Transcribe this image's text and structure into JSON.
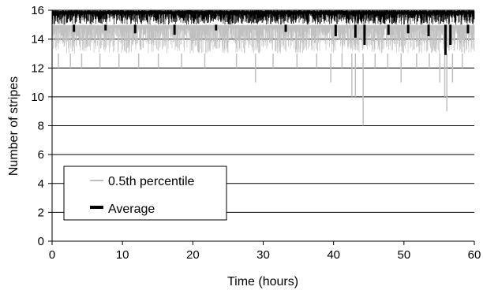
{
  "chart_data": {
    "type": "line",
    "xlabel": "Time (hours)",
    "ylabel": "Number of stripes",
    "xlim": [
      0,
      60
    ],
    "ylim": [
      0,
      16
    ],
    "x_ticks": [
      "0",
      "10",
      "20",
      "30",
      "40",
      "50",
      "60"
    ],
    "y_ticks": [
      "0",
      "2",
      "4",
      "6",
      "8",
      "10",
      "12",
      "14",
      "16"
    ],
    "grid": "horizontal",
    "legend_position": "lower-left",
    "series": [
      {
        "name": "0.5th percentile",
        "color": "#c0c0c0",
        "typical_range": [
          13,
          15
        ],
        "dips": [
          {
            "x": 0.9,
            "y": 12
          },
          {
            "x": 2.6,
            "y": 12
          },
          {
            "x": 4.2,
            "y": 12
          },
          {
            "x": 6.8,
            "y": 12
          },
          {
            "x": 9.5,
            "y": 12
          },
          {
            "x": 12.3,
            "y": 12
          },
          {
            "x": 15.1,
            "y": 12
          },
          {
            "x": 18.4,
            "y": 12
          },
          {
            "x": 21.7,
            "y": 12
          },
          {
            "x": 26.2,
            "y": 12
          },
          {
            "x": 28.9,
            "y": 11
          },
          {
            "x": 31.4,
            "y": 12
          },
          {
            "x": 34.8,
            "y": 12
          },
          {
            "x": 37.6,
            "y": 12
          },
          {
            "x": 39.6,
            "y": 11
          },
          {
            "x": 41.2,
            "y": 12
          },
          {
            "x": 42.6,
            "y": 10
          },
          {
            "x": 43.1,
            "y": 10
          },
          {
            "x": 44.2,
            "y": 8
          },
          {
            "x": 45.9,
            "y": 12
          },
          {
            "x": 47.7,
            "y": 12
          },
          {
            "x": 49.6,
            "y": 11
          },
          {
            "x": 51.8,
            "y": 12
          },
          {
            "x": 53.6,
            "y": 12
          },
          {
            "x": 55.1,
            "y": 11
          },
          {
            "x": 55.8,
            "y": 10
          },
          {
            "x": 56.1,
            "y": 9
          },
          {
            "x": 56.9,
            "y": 11
          },
          {
            "x": 58.3,
            "y": 12
          }
        ]
      },
      {
        "name": "Average",
        "color": "#000000",
        "typical_range": [
          15,
          16
        ],
        "dips": [
          {
            "x": 3.1,
            "y": 14.5
          },
          {
            "x": 7.6,
            "y": 14.6
          },
          {
            "x": 11.8,
            "y": 14.4
          },
          {
            "x": 17.4,
            "y": 14.3
          },
          {
            "x": 23.3,
            "y": 14.6
          },
          {
            "x": 33.2,
            "y": 14.5
          },
          {
            "x": 40.3,
            "y": 14.2
          },
          {
            "x": 43.1,
            "y": 14.1
          },
          {
            "x": 44.4,
            "y": 13.6
          },
          {
            "x": 47.8,
            "y": 14.3
          },
          {
            "x": 50.6,
            "y": 14.4
          },
          {
            "x": 53.5,
            "y": 14.2
          },
          {
            "x": 55.9,
            "y": 12.9
          },
          {
            "x": 56.6,
            "y": 13.6
          },
          {
            "x": 59.1,
            "y": 14.4
          }
        ]
      }
    ]
  }
}
